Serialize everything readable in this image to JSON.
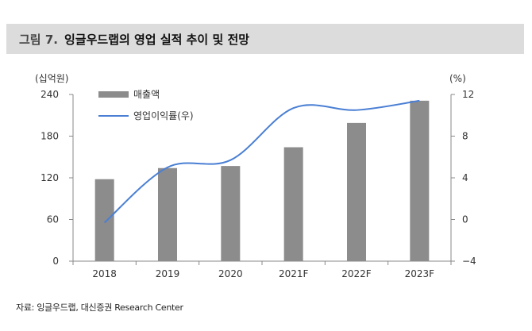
{
  "header": {
    "figure_number": "그림 7.",
    "title": "잉글우드랩의 영업 실적 추이 및 전망"
  },
  "source": "자료: 잉글우드랩, 대신증권 Research Center",
  "colors": {
    "bar": "#8c8c8c",
    "line": "#4a7fd4",
    "title_bg": "#dcdcdc",
    "axis": "#888888"
  },
  "chart_data": {
    "type": "bar",
    "categories": [
      "2018",
      "2019",
      "2020",
      "2021F",
      "2022F",
      "2023F"
    ],
    "series": [
      {
        "name": "매출액",
        "axis": "left",
        "type": "bar",
        "values": [
          118,
          134,
          137,
          164,
          199,
          231
        ]
      },
      {
        "name": "영업이익률(우)",
        "axis": "right",
        "type": "line",
        "values": [
          -0.3,
          5.0,
          5.7,
          10.7,
          10.5,
          11.4
        ]
      }
    ],
    "left_axis": {
      "label": "(십억원)",
      "ylim": [
        0,
        240
      ],
      "ticks": [
        0,
        60,
        120,
        180,
        240
      ]
    },
    "right_axis": {
      "label": "(%)",
      "ylim": [
        -4,
        12
      ],
      "ticks": [
        -4,
        0,
        4,
        8,
        12
      ]
    },
    "legend_position": "top-left"
  }
}
